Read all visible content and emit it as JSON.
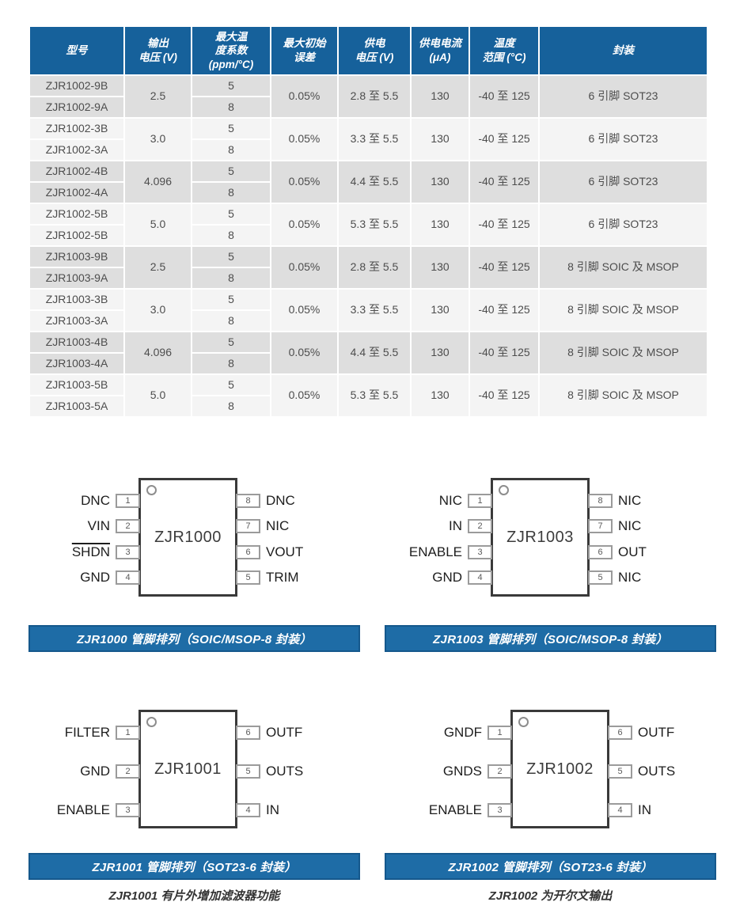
{
  "accent_color": "#16619b",
  "caption_bar_color": "#1e6ca6",
  "table": {
    "headers": [
      "型号",
      "输出\n电压 (V)",
      "最大温\n度系数\n(ppm/°C)",
      "最大初始\n误差",
      "供电\n电压 (V)",
      "供电电流\n(μA)",
      "温度\n范围 (°C)",
      "封装"
    ],
    "groups": [
      {
        "models": [
          "ZJR1002-9B",
          "ZJR1002-9A"
        ],
        "vout": "2.5",
        "tempco": [
          "5",
          "8"
        ],
        "error": "0.05%",
        "supply": "2.8 至 5.5",
        "current": "130",
        "temp_range": "-40 至 125",
        "package": "6 引脚 SOT23"
      },
      {
        "models": [
          "ZJR1002-3B",
          "ZJR1002-3A"
        ],
        "vout": "3.0",
        "tempco": [
          "5",
          "8"
        ],
        "error": "0.05%",
        "supply": "3.3 至 5.5",
        "current": "130",
        "temp_range": "-40 至 125",
        "package": "6 引脚 SOT23"
      },
      {
        "models": [
          "ZJR1002-4B",
          "ZJR1002-4A"
        ],
        "vout": "4.096",
        "tempco": [
          "5",
          "8"
        ],
        "error": "0.05%",
        "supply": "4.4 至 5.5",
        "current": "130",
        "temp_range": "-40 至 125",
        "package": "6 引脚 SOT23"
      },
      {
        "models": [
          "ZJR1002-5B",
          "ZJR1002-5B"
        ],
        "vout": "5.0",
        "tempco": [
          "5",
          "8"
        ],
        "error": "0.05%",
        "supply": "5.3 至 5.5",
        "current": "130",
        "temp_range": "-40 至 125",
        "package": "6 引脚 SOT23"
      },
      {
        "models": [
          "ZJR1003-9B",
          "ZJR1003-9A"
        ],
        "vout": "2.5",
        "tempco": [
          "5",
          "8"
        ],
        "error": "0.05%",
        "supply": "2.8 至 5.5",
        "current": "130",
        "temp_range": "-40 至 125",
        "package": "8 引脚 SOIC 及 MSOP"
      },
      {
        "models": [
          "ZJR1003-3B",
          "ZJR1003-3A"
        ],
        "vout": "3.0",
        "tempco": [
          "5",
          "8"
        ],
        "error": "0.05%",
        "supply": "3.3 至 5.5",
        "current": "130",
        "temp_range": "-40 至 125",
        "package": "8 引脚 SOIC 及 MSOP"
      },
      {
        "models": [
          "ZJR1003-4B",
          "ZJR1003-4A"
        ],
        "vout": "4.096",
        "tempco": [
          "5",
          "8"
        ],
        "error": "0.05%",
        "supply": "4.4 至 5.5",
        "current": "130",
        "temp_range": "-40 至 125",
        "package": "8 引脚 SOIC 及 MSOP"
      },
      {
        "models": [
          "ZJR1003-5B",
          "ZJR1003-5A"
        ],
        "vout": "5.0",
        "tempco": [
          "5",
          "8"
        ],
        "error": "0.05%",
        "supply": "5.3 至 5.5",
        "current": "130",
        "temp_range": "-40 至 125",
        "package": "8 引脚 SOIC 及 MSOP"
      }
    ]
  },
  "diagrams": [
    {
      "chip": "ZJR1000",
      "left_pins": [
        {
          "num": "1",
          "label": "DNC",
          "overline": false
        },
        {
          "num": "2",
          "label": "VIN",
          "overline": false
        },
        {
          "num": "3",
          "label": "SHDN",
          "overline": true
        },
        {
          "num": "4",
          "label": "GND",
          "overline": false
        }
      ],
      "right_pins": [
        {
          "num": "8",
          "label": "DNC",
          "overline": false
        },
        {
          "num": "7",
          "label": "NIC",
          "overline": false
        },
        {
          "num": "6",
          "label": "VOUT",
          "overline": false
        },
        {
          "num": "5",
          "label": "TRIM",
          "overline": false
        }
      ],
      "caption": "ZJR1000 管脚排列（SOIC/MSOP-8 封装）",
      "note": ""
    },
    {
      "chip": "ZJR1003",
      "left_pins": [
        {
          "num": "1",
          "label": "NIC",
          "overline": false
        },
        {
          "num": "2",
          "label": "IN",
          "overline": false
        },
        {
          "num": "3",
          "label": "ENABLE",
          "overline": false
        },
        {
          "num": "4",
          "label": "GND",
          "overline": false
        }
      ],
      "right_pins": [
        {
          "num": "8",
          "label": "NIC",
          "overline": false
        },
        {
          "num": "7",
          "label": "NIC",
          "overline": false
        },
        {
          "num": "6",
          "label": "OUT",
          "overline": false
        },
        {
          "num": "5",
          "label": "NIC",
          "overline": false
        }
      ],
      "caption": "ZJR1003 管脚排列（SOIC/MSOP-8 封装）",
      "note": ""
    },
    {
      "chip": "ZJR1001",
      "left_pins": [
        {
          "num": "1",
          "label": "FILTER",
          "overline": false
        },
        {
          "num": "2",
          "label": "GND",
          "overline": false
        },
        {
          "num": "3",
          "label": "ENABLE",
          "overline": false
        }
      ],
      "right_pins": [
        {
          "num": "6",
          "label": "OUTF",
          "overline": false
        },
        {
          "num": "5",
          "label": "OUTS",
          "overline": false
        },
        {
          "num": "4",
          "label": "IN",
          "overline": false
        }
      ],
      "caption": "ZJR1001 管脚排列（SOT23-6 封装）",
      "note": "ZJR1001 有片外增加滤波器功能"
    },
    {
      "chip": "ZJR1002",
      "left_pins": [
        {
          "num": "1",
          "label": "GNDF",
          "overline": false
        },
        {
          "num": "2",
          "label": "GNDS",
          "overline": false
        },
        {
          "num": "3",
          "label": "ENABLE",
          "overline": false
        }
      ],
      "right_pins": [
        {
          "num": "6",
          "label": "OUTF",
          "overline": false
        },
        {
          "num": "5",
          "label": "OUTS",
          "overline": false
        },
        {
          "num": "4",
          "label": "IN",
          "overline": false
        }
      ],
      "caption": "ZJR1002 管脚排列（SOT23-6 封装）",
      "note": "ZJR1002 为开尔文输出"
    }
  ]
}
